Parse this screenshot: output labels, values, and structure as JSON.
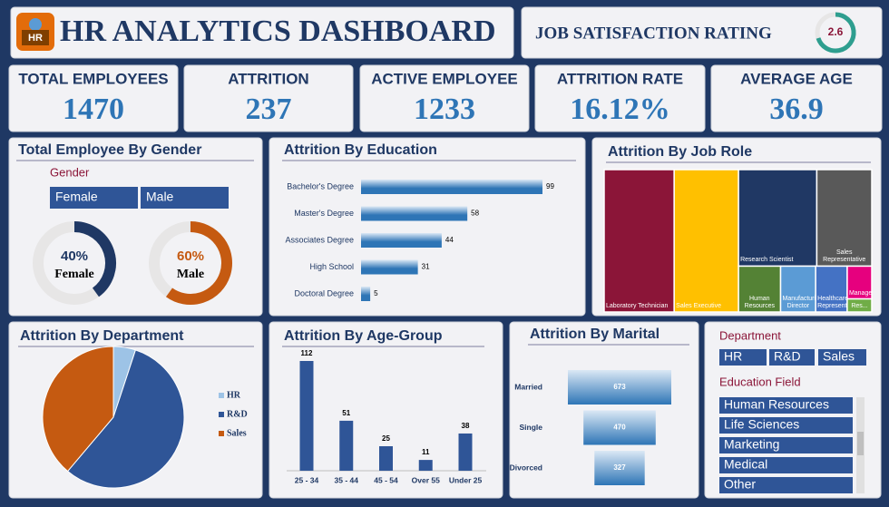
{
  "header": {
    "logo": "HR",
    "title": "HR ANALYTICS DASHBOARD"
  },
  "rating": {
    "label": "JOB SATISFACTION RATING",
    "value": 2.6
  },
  "kpis": [
    {
      "label": "TOTAL EMPLOYEES",
      "value": 1470
    },
    {
      "label": "ATTRITION",
      "value": 237
    },
    {
      "label": "ACTIVE EMPLOYEE",
      "value": 1233
    },
    {
      "label": "ATTRITION RATE",
      "value": "16.12%"
    },
    {
      "label": "AVERAGE AGE",
      "value": 36.9
    }
  ],
  "chart_data": [
    {
      "type": "donut",
      "title": "Total Employee By Gender",
      "slicer_title": "Gender",
      "categories": [
        "Female",
        "Male"
      ],
      "values": [
        40,
        60
      ],
      "value_labels": [
        "40%",
        "60%"
      ],
      "colors": [
        "#1f3864",
        "#c55a11"
      ]
    },
    {
      "type": "hbar",
      "title": "Attrition By Education",
      "categories": [
        "Bachelor's Degree",
        "Master's Degree",
        "Associates Degree",
        "High School",
        "Doctoral Degree"
      ],
      "values": [
        99,
        58,
        44,
        31,
        5
      ],
      "color": "#2e75b6"
    },
    {
      "type": "treemap",
      "title": "Attrition By Job Role",
      "categories": [
        "Laboratory Technician",
        "Sales Executive",
        "Research Scientist",
        "Sales Representative",
        "Human Resources",
        "Manufacturing Director",
        "Healthcare Representative",
        "Manager",
        "Res..."
      ],
      "values": [
        62,
        57,
        47,
        33,
        12,
        10,
        9,
        5,
        2
      ],
      "colors": [
        "#8b1538",
        "#ffc000",
        "#203864",
        "#595959",
        "#548235",
        "#5b9bd5",
        "#4472c4",
        "#e6007e",
        "#70ad47"
      ]
    },
    {
      "type": "pie",
      "title": "Attrition By Department",
      "categories": [
        "HR",
        "R&D",
        "Sales"
      ],
      "values": [
        12,
        133,
        92
      ],
      "colors": [
        "#9dc3e6",
        "#2f5597",
        "#c55a11"
      ]
    },
    {
      "type": "column",
      "title": "Attrition By Age-Group",
      "categories": [
        "25 - 34",
        "35 - 44",
        "45 - 54",
        "Over 55",
        "Under 25"
      ],
      "values": [
        112,
        51,
        25,
        11,
        38
      ],
      "color": "#2f5597"
    },
    {
      "type": "funnel",
      "title": "Attrition By Marital",
      "categories": [
        "Married",
        "Single",
        "Divorced"
      ],
      "values": [
        673,
        470,
        327
      ],
      "color": "#2e75b6"
    }
  ],
  "slicers": [
    {
      "title": "Department",
      "items": [
        "HR",
        "R&D",
        "Sales"
      ]
    },
    {
      "title": "Education Field",
      "items": [
        "Human Resources",
        "Life Sciences",
        "Marketing",
        "Medical",
        "Other"
      ]
    }
  ]
}
